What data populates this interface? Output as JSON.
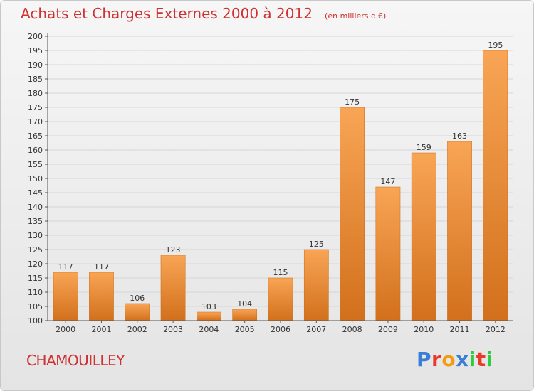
{
  "header": {
    "title": "Achats et Charges Externes 2000 à 2012",
    "subtitle": "(en milliers d'€)"
  },
  "footer": {
    "commune": "CHAMOUILLEY",
    "logo_text": "Proxiti",
    "logo_colors": [
      "#3a7fd5",
      "#e8392b",
      "#f39c12",
      "#3a7fd5",
      "#2ecc40",
      "#e8392b",
      "#2ecc40"
    ]
  },
  "chart_data": {
    "type": "bar",
    "title": "Achats et Charges Externes 2000 à 2012",
    "subtitle": "(en milliers d'€)",
    "xlabel": "",
    "ylabel": "",
    "categories": [
      "2000",
      "2001",
      "2002",
      "2003",
      "2004",
      "2005",
      "2006",
      "2007",
      "2008",
      "2009",
      "2010",
      "2011",
      "2012"
    ],
    "values": [
      117,
      117,
      106,
      123,
      103,
      104,
      115,
      125,
      175,
      147,
      159,
      163,
      195
    ],
    "ylim": [
      100,
      200
    ],
    "ytick_step": 5,
    "grid": true,
    "legend": "none",
    "bar_color": "#f0892e",
    "bar_color_dark": "#cc6a18",
    "grid_color": "#d6d6d6",
    "label_color": "#333333"
  }
}
